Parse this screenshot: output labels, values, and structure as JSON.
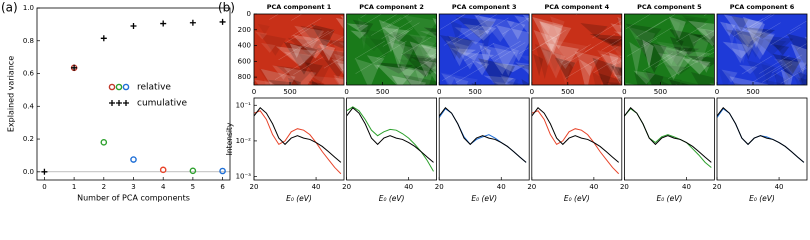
{
  "chart_data": [
    {
      "type": "scatter",
      "panel_label": "(a)",
      "xlabel": "Number of PCA components",
      "ylabel": "Explained variance",
      "xlim": [
        -0.25,
        6.25
      ],
      "ylim": [
        -0.05,
        1.0
      ],
      "xticks": [
        0,
        1,
        2,
        3,
        4,
        5,
        6
      ],
      "yticks": [
        {
          "value": 0,
          "label": "0.0"
        },
        {
          "value": 0.2,
          "label": "0.2"
        },
        {
          "value": 0.4,
          "label": "0.4"
        },
        {
          "value": 0.6,
          "label": "0.6"
        },
        {
          "value": 0.8,
          "label": "0.8"
        },
        {
          "value": 1.0,
          "label": "1.0"
        }
      ],
      "series": [
        {
          "name": "relative",
          "marker": "circle",
          "colors": [
            "#c0392b",
            "#2ca02c",
            "#1f6fd6",
            "#e8442a",
            "#2ca02c",
            "#1f6fd6"
          ],
          "x": [
            1,
            2,
            3,
            4,
            5,
            6
          ],
          "values": [
            0.635,
            0.18,
            0.075,
            0.012,
            0.006,
            0.005
          ]
        },
        {
          "name": "cumulative",
          "marker": "plus",
          "color": "#000000",
          "x": [
            0,
            1,
            2,
            3,
            4,
            5,
            6
          ],
          "values": [
            0,
            0.635,
            0.815,
            0.89,
            0.905,
            0.91,
            0.915
          ]
        }
      ]
    },
    {
      "type": "image",
      "panel_label": "(b)",
      "title": "PCA component 1",
      "color": "#c83018",
      "xlim": [
        0,
        1250
      ],
      "ylim": [
        900,
        0
      ],
      "xticks": [
        0,
        500
      ],
      "yticks": [
        0,
        200,
        400,
        600,
        800
      ]
    },
    {
      "type": "image",
      "title": "PCA component 2",
      "color": "#1a7a1a",
      "xlim": [
        0,
        1250
      ],
      "ylim": [
        900,
        0
      ],
      "xticks": [
        0,
        500
      ]
    },
    {
      "type": "image",
      "title": "PCA component 3",
      "color": "#1e3ad8",
      "xlim": [
        0,
        1250
      ],
      "ylim": [
        900,
        0
      ],
      "xticks": [
        0,
        500
      ]
    },
    {
      "type": "image",
      "title": "PCA component 4",
      "color": "#c83018",
      "xlim": [
        0,
        1250
      ],
      "ylim": [
        900,
        0
      ],
      "xticks": [
        0,
        500
      ]
    },
    {
      "type": "image",
      "title": "PCA component 5",
      "color": "#1a7a1a",
      "xlim": [
        0,
        1250
      ],
      "ylim": [
        900,
        0
      ],
      "xticks": [
        0,
        500
      ]
    },
    {
      "type": "image",
      "title": "PCA component 6",
      "color": "#1e3ad8",
      "xlim": [
        0,
        1250
      ],
      "ylim": [
        900,
        0
      ],
      "xticks": [
        0,
        500
      ]
    },
    {
      "type": "line",
      "log_y": true,
      "ylabel": "Intensity",
      "xlabel": "E₀ (eV)",
      "xlim": [
        20,
        49
      ],
      "ylim": [
        0.0008,
        0.16
      ],
      "xticks": [
        20,
        40
      ],
      "yticks": [
        {
          "value": 0.1,
          "label": "10⁻¹"
        },
        {
          "value": 0.01,
          "label": "10⁻²"
        },
        {
          "value": 0.001,
          "label": "10⁻³"
        }
      ],
      "x": [
        20,
        22,
        24,
        26,
        28,
        30,
        32,
        34,
        36,
        38,
        40,
        42,
        44,
        46,
        48
      ],
      "series": [
        {
          "color": "#e8442a",
          "values": [
            0.06,
            0.07,
            0.04,
            0.015,
            0.008,
            0.01,
            0.018,
            0.022,
            0.02,
            0.015,
            0.009,
            0.005,
            0.003,
            0.0018,
            0.0012
          ]
        },
        {
          "color": "#000000",
          "values": [
            0.05,
            0.085,
            0.06,
            0.03,
            0.012,
            0.008,
            0.012,
            0.014,
            0.012,
            0.011,
            0.009,
            0.007,
            0.005,
            0.0035,
            0.0025
          ]
        }
      ]
    },
    {
      "type": "line",
      "log_y": true,
      "xlabel": "E₀ (eV)",
      "xlim": [
        20,
        49
      ],
      "ylim": [
        0.0008,
        0.16
      ],
      "xticks": [
        20,
        40
      ],
      "x": [
        20,
        22,
        24,
        26,
        28,
        30,
        32,
        34,
        36,
        38,
        40,
        42,
        44,
        46,
        48
      ],
      "series": [
        {
          "color": "#2ca02c",
          "values": [
            0.07,
            0.09,
            0.07,
            0.04,
            0.02,
            0.014,
            0.018,
            0.021,
            0.02,
            0.016,
            0.012,
            0.008,
            0.005,
            0.0028,
            0.0014
          ]
        },
        {
          "color": "#000000",
          "values": [
            0.05,
            0.085,
            0.06,
            0.03,
            0.012,
            0.008,
            0.012,
            0.014,
            0.012,
            0.011,
            0.009,
            0.007,
            0.005,
            0.0035,
            0.0025
          ]
        }
      ]
    },
    {
      "type": "line",
      "log_y": true,
      "xlabel": "E₀ (eV)",
      "xlim": [
        20,
        49
      ],
      "ylim": [
        0.0008,
        0.16
      ],
      "xticks": [
        20,
        40
      ],
      "x": [
        20,
        22,
        24,
        26,
        28,
        30,
        32,
        34,
        36,
        38,
        40,
        42,
        44,
        46,
        48
      ],
      "series": [
        {
          "color": "#1f6fd6",
          "values": [
            0.045,
            0.08,
            0.06,
            0.03,
            0.013,
            0.008,
            0.011,
            0.013,
            0.015,
            0.012,
            0.009,
            0.007,
            0.005,
            0.0035,
            0.0025
          ]
        },
        {
          "color": "#000000",
          "values": [
            0.05,
            0.085,
            0.06,
            0.03,
            0.012,
            0.008,
            0.012,
            0.014,
            0.012,
            0.011,
            0.009,
            0.007,
            0.005,
            0.0035,
            0.0025
          ]
        }
      ]
    },
    {
      "type": "line",
      "log_y": true,
      "xlabel": "E₀ (eV)",
      "xlim": [
        20,
        49
      ],
      "ylim": [
        0.0008,
        0.16
      ],
      "xticks": [
        20,
        40
      ],
      "x": [
        20,
        22,
        24,
        26,
        28,
        30,
        32,
        34,
        36,
        38,
        40,
        42,
        44,
        46,
        48
      ],
      "series": [
        {
          "color": "#e8442a",
          "values": [
            0.06,
            0.07,
            0.04,
            0.015,
            0.008,
            0.01,
            0.018,
            0.022,
            0.02,
            0.015,
            0.009,
            0.005,
            0.003,
            0.0018,
            0.0012
          ]
        },
        {
          "color": "#000000",
          "values": [
            0.05,
            0.085,
            0.06,
            0.03,
            0.012,
            0.008,
            0.012,
            0.014,
            0.012,
            0.011,
            0.009,
            0.007,
            0.005,
            0.0035,
            0.0025
          ]
        }
      ]
    },
    {
      "type": "line",
      "log_y": true,
      "xlabel": "E₀ (eV)",
      "xlim": [
        20,
        49
      ],
      "ylim": [
        0.0008,
        0.16
      ],
      "xticks": [
        20,
        40
      ],
      "x": [
        20,
        22,
        24,
        26,
        28,
        30,
        32,
        34,
        36,
        38,
        40,
        42,
        44,
        46,
        48
      ],
      "series": [
        {
          "color": "#2ca02c",
          "values": [
            0.05,
            0.08,
            0.06,
            0.03,
            0.012,
            0.009,
            0.013,
            0.015,
            0.013,
            0.011,
            0.009,
            0.006,
            0.004,
            0.0025,
            0.0018
          ]
        },
        {
          "color": "#000000",
          "values": [
            0.05,
            0.085,
            0.06,
            0.03,
            0.012,
            0.008,
            0.012,
            0.014,
            0.012,
            0.011,
            0.009,
            0.007,
            0.005,
            0.0035,
            0.0025
          ]
        }
      ]
    },
    {
      "type": "line",
      "log_y": true,
      "xlabel": "E₀ (eV)",
      "xlim": [
        20,
        49
      ],
      "ylim": [
        0.0008,
        0.16
      ],
      "xticks": [
        20,
        40
      ],
      "x": [
        20,
        22,
        24,
        26,
        28,
        30,
        32,
        34,
        36,
        38,
        40,
        42,
        44,
        46,
        48
      ],
      "series": [
        {
          "color": "#1f6fd6",
          "values": [
            0.045,
            0.08,
            0.06,
            0.03,
            0.012,
            0.008,
            0.012,
            0.014,
            0.013,
            0.011,
            0.009,
            0.007,
            0.005,
            0.0035,
            0.0025
          ]
        },
        {
          "color": "#000000",
          "values": [
            0.05,
            0.085,
            0.06,
            0.03,
            0.012,
            0.008,
            0.012,
            0.014,
            0.012,
            0.011,
            0.009,
            0.007,
            0.005,
            0.0035,
            0.0025
          ]
        }
      ]
    }
  ]
}
